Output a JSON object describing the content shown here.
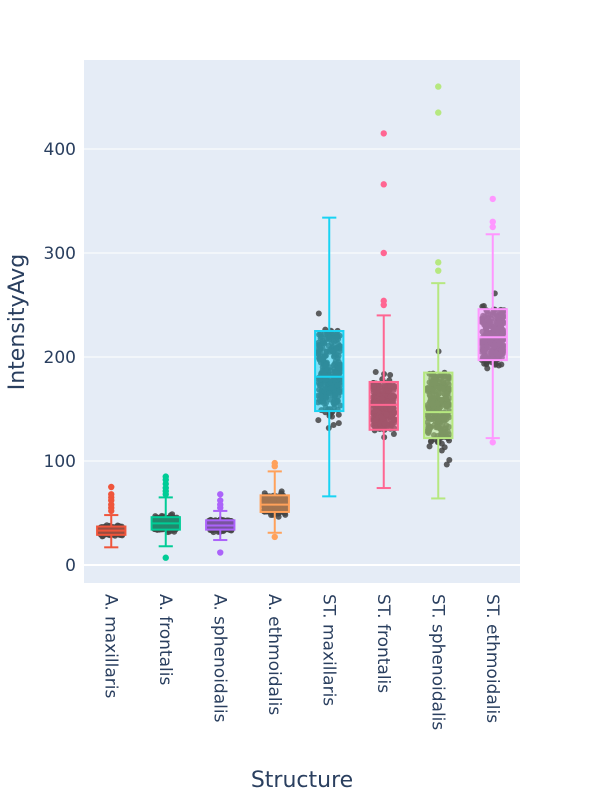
{
  "chart_data": {
    "type": "box",
    "title": "",
    "xlabel": "Structure",
    "ylabel": "IntensityAvg",
    "ylim": [
      -18,
      480
    ],
    "yticks": [
      0,
      100,
      200,
      300,
      400
    ],
    "grid": true,
    "categories": [
      "A. maxillaris",
      "A. frontalis",
      "A. sphenoidalis",
      "A. ethmoidalis",
      "ST. maxillaris",
      "ST. frontalis",
      "ST. sphenoidalis",
      "ST. ethmoidalis"
    ],
    "series": [
      {
        "name": "A. maxillaris",
        "color": "#EF553B",
        "lower_fence": 17,
        "q1": 29,
        "median": 33,
        "q3": 37,
        "upper_fence": 48,
        "outliers": [
          52,
          55,
          58,
          62,
          65,
          68,
          75
        ]
      },
      {
        "name": "A. frontalis",
        "color": "#00CC96",
        "lower_fence": 18,
        "q1": 34,
        "median": 40,
        "q3": 46,
        "upper_fence": 65,
        "outliers": [
          7,
          68,
          71,
          74,
          78,
          82,
          85
        ]
      },
      {
        "name": "A. sphenoidalis",
        "color": "#AB63FA",
        "lower_fence": 24,
        "q1": 34,
        "median": 38,
        "q3": 43,
        "upper_fence": 52,
        "outliers": [
          12,
          55,
          58,
          62,
          68
        ]
      },
      {
        "name": "A. ethmoidalis",
        "color": "#FFA15A",
        "lower_fence": 31,
        "q1": 51,
        "median": 58,
        "q3": 67,
        "upper_fence": 90,
        "outliers": [
          27,
          95,
          98
        ]
      },
      {
        "name": "ST. maxillaris",
        "color": "#19D3F3",
        "lower_fence": 66,
        "q1": 148,
        "median": 181,
        "q3": 225,
        "upper_fence": 334,
        "outliers": []
      },
      {
        "name": "ST. frontalis",
        "color": "#FF6692",
        "lower_fence": 74,
        "q1": 130,
        "median": 154,
        "q3": 176,
        "upper_fence": 240,
        "outliers": [
          250,
          254,
          300,
          366,
          415
        ]
      },
      {
        "name": "ST. sphenoidalis",
        "color": "#B6E880",
        "lower_fence": 64,
        "q1": 122,
        "median": 147,
        "q3": 185,
        "upper_fence": 271,
        "outliers": [
          283,
          291,
          435,
          460
        ]
      },
      {
        "name": "ST. ethmoidalis",
        "color": "#FF97FF",
        "lower_fence": 122,
        "q1": 197,
        "median": 219,
        "q3": 246,
        "upper_fence": 318,
        "outliers": [
          118,
          325,
          330,
          352
        ]
      }
    ]
  }
}
